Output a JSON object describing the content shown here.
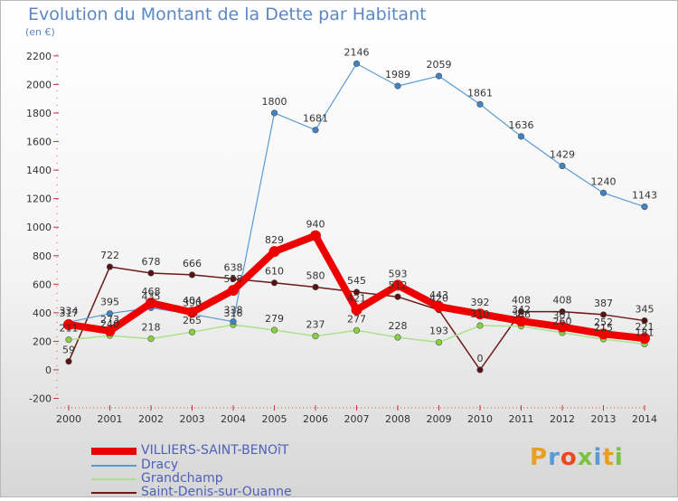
{
  "title": "Evolution du Montant de la Dette par Habitant",
  "subtitle": "(en €)",
  "brand": "Proxiti",
  "chart_data": {
    "type": "line",
    "title": "Evolution du Montant de la Dette par Habitant",
    "subtitle": "(en €)",
    "categories": [
      "2000",
      "2001",
      "2002",
      "2003",
      "2004",
      "2005",
      "2006",
      "2007",
      "2008",
      "2009",
      "2010",
      "2011",
      "2012",
      "2013",
      "2014"
    ],
    "ylim": [
      -200,
      2200
    ],
    "yticks": [
      -200,
      0,
      200,
      400,
      600,
      800,
      1000,
      1200,
      1400,
      1600,
      1800,
      2000,
      2200
    ],
    "grid": false,
    "legend_position": "bottom-left",
    "series": [
      {
        "name": "Saint-Denis-sur-Ouanne",
        "color": "#6b1a1a",
        "marker": "#5a1010",
        "stroke_width": 1.5,
        "values": [
          59,
          722,
          678,
          666,
          638,
          610,
          580,
          545,
          512,
          420,
          0,
          408,
          408,
          387,
          345
        ]
      },
      {
        "name": "Grandchamp",
        "color": "#a9e28b",
        "marker": "#86d33e",
        "stroke_width": 1.5,
        "values": [
          211,
          240,
          218,
          265,
          316,
          279,
          237,
          277,
          228,
          193,
          310,
          306,
          260,
          215,
          181
        ]
      },
      {
        "name": "Dracy",
        "color": "#5a9bd5",
        "marker": "#3f83c5",
        "stroke_width": 1.2,
        "values": [
          334,
          395,
          435,
          390,
          338,
          1800,
          1681,
          2146,
          1989,
          2059,
          1861,
          1636,
          1429,
          1240,
          1143
        ]
      },
      {
        "name": "VILLIERS-SAINT-BENOîT",
        "color": "#ee0000",
        "marker": "#ee0000",
        "stroke_width": 8,
        "values": [
          317,
          273,
          468,
          404,
          558,
          829,
          940,
          421,
          593,
          443,
          392,
          342,
          301,
          252,
          221
        ]
      }
    ],
    "data_labels": [
      {
        "series": 0,
        "values": [
          59,
          722,
          678,
          666,
          638,
          610,
          580,
          545,
          512,
          420,
          0,
          408,
          408,
          387,
          345
        ]
      },
      {
        "series": 1,
        "values": [
          211,
          240,
          218,
          265,
          316,
          279,
          237,
          277,
          228,
          193,
          310,
          306,
          260,
          215,
          181
        ]
      },
      {
        "series": 2,
        "values": [
          334,
          395,
          435,
          390,
          338,
          1800,
          1681,
          2146,
          1989,
          2059,
          1861,
          1636,
          1429,
          1240,
          1143
        ]
      },
      {
        "series": 3,
        "values": [
          317,
          273,
          468,
          404,
          558,
          829,
          940,
          421,
          593,
          443,
          392,
          342,
          301,
          252,
          221
        ]
      }
    ]
  },
  "legend": [
    {
      "label": "VILLIERS-SAINT-BENOîT",
      "color": "#ee0000"
    },
    {
      "label": "Dracy",
      "color": "#5a9bd5"
    },
    {
      "label": "Grandchamp",
      "color": "#a9e28b"
    },
    {
      "label": "Saint-Denis-sur-Ouanne",
      "color": "#6b1a1a"
    }
  ]
}
